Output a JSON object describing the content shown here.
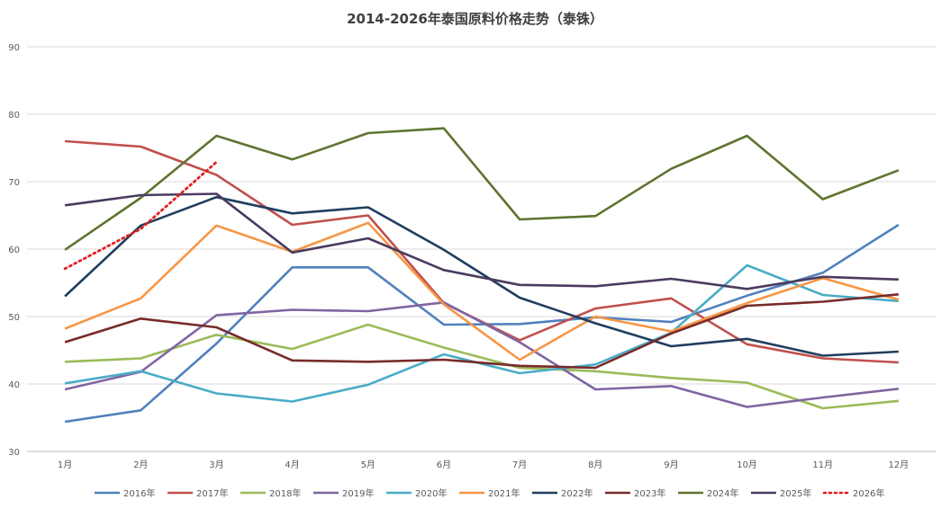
{
  "chart_data": {
    "type": "line",
    "title": "2014-2026年泰国原料价格走势（泰铢）",
    "xlabel": "",
    "ylabel": "",
    "categories": [
      "1月",
      "2月",
      "3月",
      "4月",
      "5月",
      "6月",
      "7月",
      "8月",
      "9月",
      "10月",
      "11月",
      "12月"
    ],
    "ylim": [
      30,
      90
    ],
    "yticks": [
      30,
      40,
      50,
      60,
      70,
      80,
      90
    ],
    "grid": true,
    "legend_position": "bottom",
    "series": [
      {
        "name": "2016年",
        "color": "#4f81bd",
        "style": "solid",
        "values": [
          34.4,
          36.1,
          46.0,
          57.3,
          57.3,
          48.8,
          48.9,
          49.9,
          49.2,
          53.1,
          56.5,
          63.6
        ]
      },
      {
        "name": "2017年",
        "color": "#c0504d",
        "style": "solid",
        "values": [
          76.0,
          75.2,
          71.0,
          63.6,
          65.0,
          52.0,
          46.5,
          51.2,
          52.7,
          45.9,
          43.8,
          43.2
        ]
      },
      {
        "name": "2018年",
        "color": "#9bbb59",
        "style": "solid",
        "values": [
          43.3,
          43.8,
          47.3,
          45.2,
          48.8,
          45.4,
          42.4,
          41.9,
          40.9,
          40.2,
          36.4,
          37.5
        ]
      },
      {
        "name": "2019年",
        "color": "#8064a2",
        "style": "solid",
        "values": [
          39.2,
          41.8,
          50.2,
          51.0,
          50.8,
          52.1,
          46.2,
          39.2,
          39.7,
          36.6,
          38.0,
          39.3
        ]
      },
      {
        "name": "2020年",
        "color": "#4bacc6",
        "style": "solid",
        "values": [
          40.1,
          41.9,
          38.6,
          37.4,
          39.9,
          44.4,
          41.6,
          42.9,
          47.6,
          57.6,
          53.2,
          52.3
        ]
      },
      {
        "name": "2021年",
        "color": "#f79646",
        "style": "solid",
        "values": [
          48.2,
          52.7,
          63.5,
          59.6,
          63.9,
          51.8,
          43.6,
          50.0,
          47.8,
          52.0,
          55.7,
          52.5
        ]
      },
      {
        "name": "2022年",
        "color": "#1f3e5e",
        "style": "solid",
        "values": [
          53.0,
          63.5,
          67.7,
          65.3,
          66.2,
          59.9,
          52.8,
          49.0,
          45.6,
          46.7,
          44.2,
          44.8
        ]
      },
      {
        "name": "2023年",
        "color": "#772b2a",
        "style": "solid",
        "values": [
          46.2,
          49.7,
          48.4,
          43.5,
          43.3,
          43.6,
          42.7,
          42.4,
          47.5,
          51.6,
          52.2,
          53.3
        ]
      },
      {
        "name": "2024年",
        "color": "#5e7430",
        "style": "solid",
        "values": [
          59.9,
          67.6,
          76.8,
          73.3,
          77.2,
          77.9,
          64.4,
          64.9,
          71.9,
          76.8,
          67.4,
          71.7
        ]
      },
      {
        "name": "2025年",
        "color": "#4a3b5f",
        "style": "solid",
        "values": [
          66.5,
          68.0,
          68.2,
          59.5,
          61.6,
          56.9,
          54.7,
          54.5,
          55.6,
          54.1,
          55.9,
          55.5
        ]
      },
      {
        "name": "2026年",
        "color": "#e31f1f",
        "style": "dotted",
        "values": [
          57.1,
          63.0,
          72.9,
          null,
          null,
          null,
          null,
          null,
          null,
          null,
          null,
          null
        ]
      }
    ]
  }
}
